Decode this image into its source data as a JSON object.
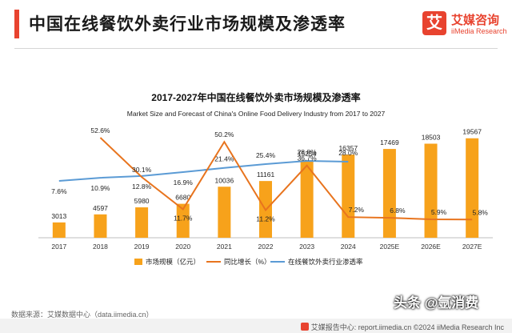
{
  "page": {
    "title": "中国在线餐饮外卖行业市场规模及渗透率"
  },
  "logo": {
    "mark": "艾",
    "name_cn": "艾媒咨询",
    "name_en": "iiMedia Research"
  },
  "chart_data": {
    "type": "bar",
    "title": "2017-2027年中国在线餐饮外卖市场规模及渗透率",
    "subtitle": "Market Size and Forecast of China's Online Food Delivery Industry from 2017 to 2027",
    "categories": [
      "2017",
      "2018",
      "2019",
      "2020",
      "2021",
      "2022",
      "2023",
      "2024",
      "2025E",
      "2026E",
      "2027E"
    ],
    "series": [
      {
        "name": "市场规模（亿元）",
        "kind": "bar",
        "color": "#f7a21b",
        "values": [
          3013,
          4597,
          5980,
          6680,
          10036,
          11161,
          15254,
          16357,
          17469,
          18503,
          19567
        ],
        "labels": [
          "3013",
          "4597",
          "5980",
          "6680",
          "10036",
          "11161",
          "15254",
          "16357",
          "17469",
          "18503",
          "19567"
        ]
      },
      {
        "name": "同比增长（%）",
        "kind": "line",
        "color": "#e8741e",
        "values": [
          null,
          52.6,
          30.1,
          11.7,
          50.2,
          11.2,
          36.7,
          7.2,
          6.8,
          5.9,
          5.8
        ],
        "labels": [
          "",
          "52.6%",
          "30.1%",
          "11.7%",
          "50.2%",
          "11.2%",
          "36.7%",
          "7.2%",
          "6.8%",
          "5.9%",
          "5.8%"
        ]
      },
      {
        "name": "在线餐饮外卖行业渗透率",
        "kind": "line",
        "color": "#5b9bd5",
        "values": [
          7.6,
          10.9,
          12.8,
          16.9,
          21.4,
          25.4,
          28.8,
          28.0,
          null,
          null,
          null
        ],
        "labels": [
          "7.6%",
          "10.9%",
          "12.8%",
          "16.9%",
          "21.4%",
          "25.4%",
          "28.8%",
          "28.0%",
          "",
          "",
          ""
        ]
      }
    ],
    "legend_position": "bottom",
    "grid": false
  },
  "source": "数据来源：艾媒数据中心（data.iimedia.cn）",
  "footer": "艾媒报告中心: report.iimedia.cn    ©2024  iiMedia Research  Inc",
  "watermark": "头条 @氩消费"
}
